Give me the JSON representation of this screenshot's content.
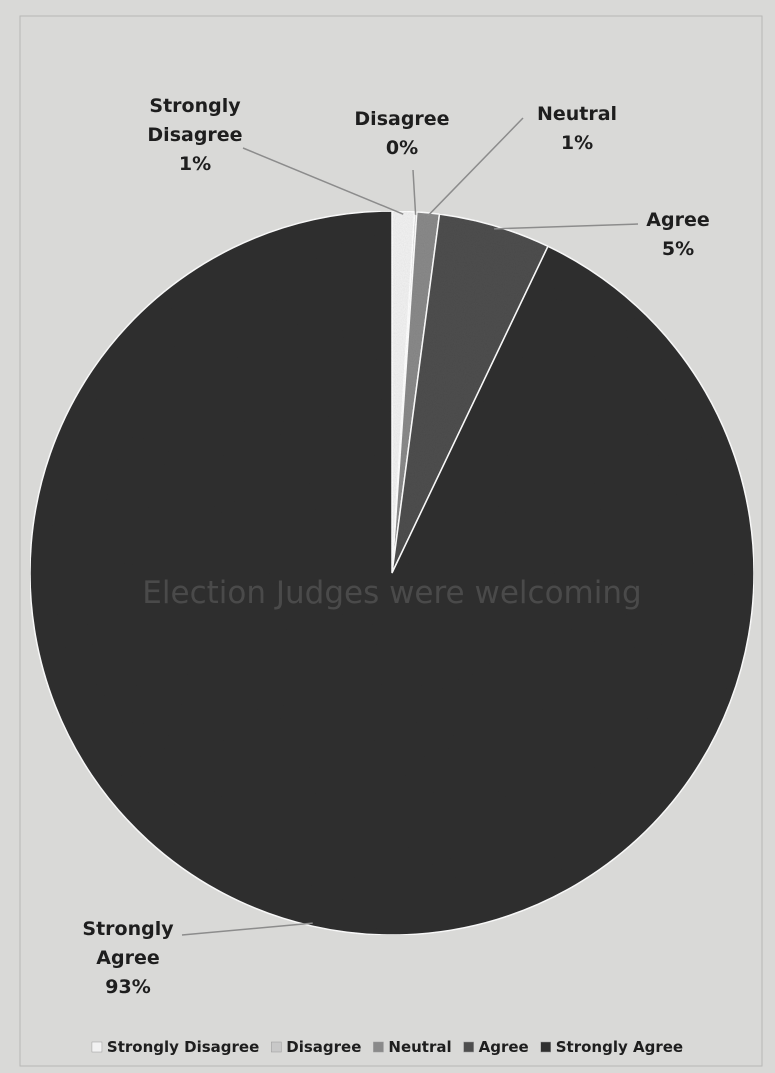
{
  "chart_data": {
    "type": "pie",
    "title": "Election Judges were welcoming",
    "categories": [
      "Strongly Disagree",
      "Disagree",
      "Neutral",
      "Agree",
      "Strongly Agree"
    ],
    "values": [
      1,
      0,
      1,
      5,
      93
    ],
    "value_labels": [
      "1%",
      "0%",
      "1%",
      "5%",
      "93%"
    ],
    "slice_labels": [
      [
        "Strongly",
        "Disagree"
      ],
      [
        "Disagree"
      ],
      [
        "Neutral"
      ],
      [
        "Agree"
      ],
      [
        "Strongly",
        "Agree"
      ]
    ],
    "legend_position": "bottom",
    "colors": [
      "#f2f2f2",
      "#c8c8c8",
      "#8a8a8a",
      "#4e4e4e",
      "#303030"
    ]
  }
}
